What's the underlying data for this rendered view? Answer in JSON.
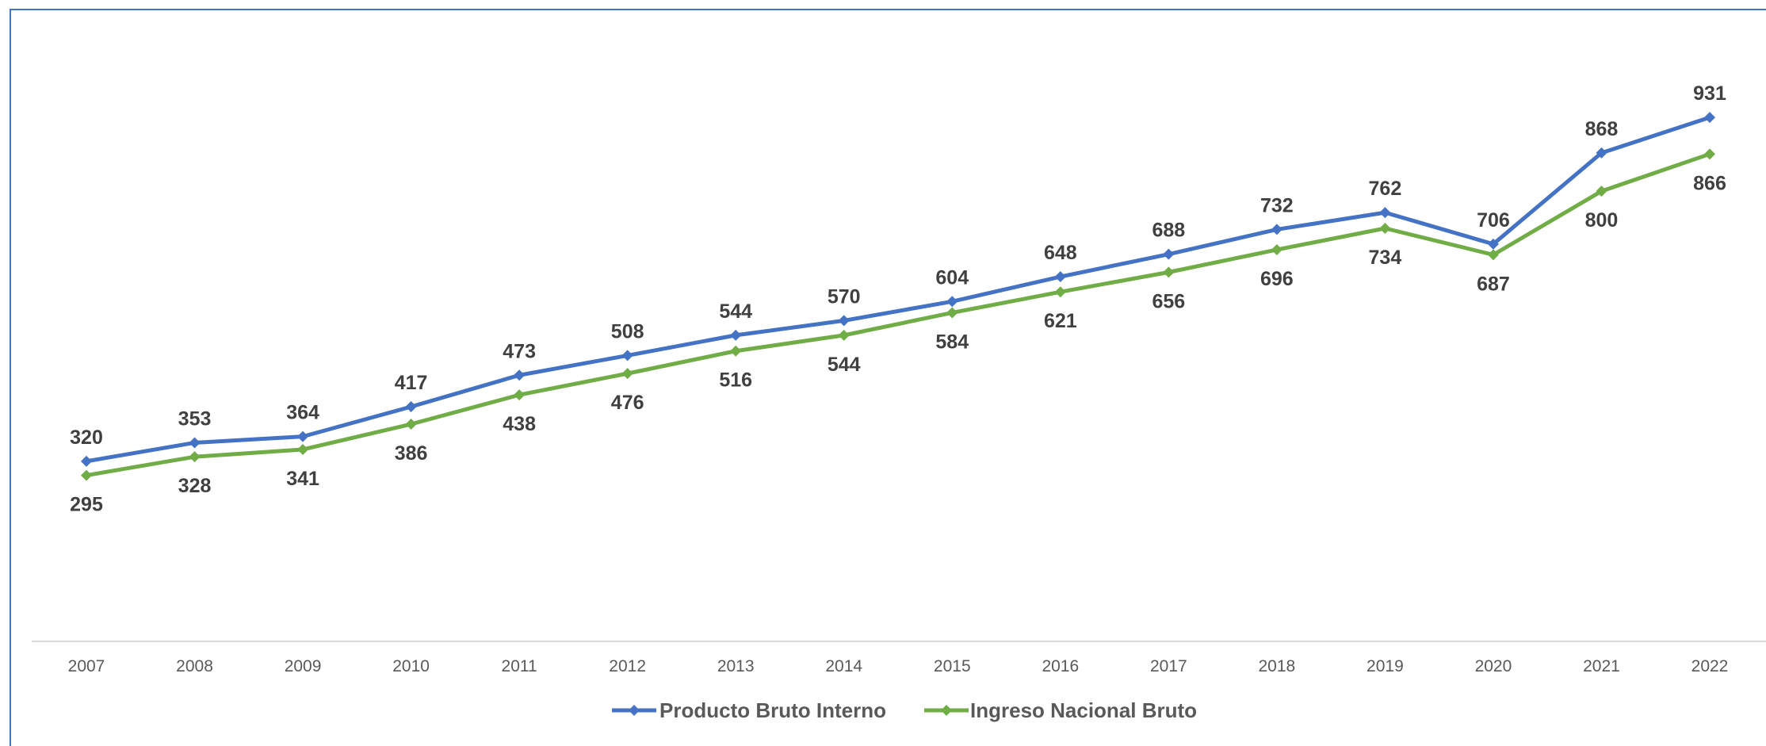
{
  "chart_data": {
    "type": "line",
    "title": "",
    "xlabel": "",
    "ylabel": "",
    "x": [
      "2007",
      "2008",
      "2009",
      "2010",
      "2011",
      "2012",
      "2013",
      "2014",
      "2015",
      "2016",
      "2017",
      "2018",
      "2019",
      "2020",
      "2021",
      "2022"
    ],
    "ylim": [
      0,
      1000
    ],
    "grid": false,
    "legend_position": "bottom",
    "series": [
      {
        "name": "Producto Bruto Interno",
        "color": "#4472c4",
        "label_position": "above",
        "values": [
          320,
          353,
          364,
          417,
          473,
          508,
          544,
          570,
          604,
          648,
          688,
          732,
          762,
          706,
          868,
          931
        ]
      },
      {
        "name": "Ingreso Nacional Bruto",
        "color": "#70ad47",
        "label_position": "below",
        "values": [
          295,
          328,
          341,
          386,
          438,
          476,
          516,
          544,
          584,
          621,
          656,
          696,
          734,
          687,
          800,
          866
        ]
      }
    ]
  }
}
